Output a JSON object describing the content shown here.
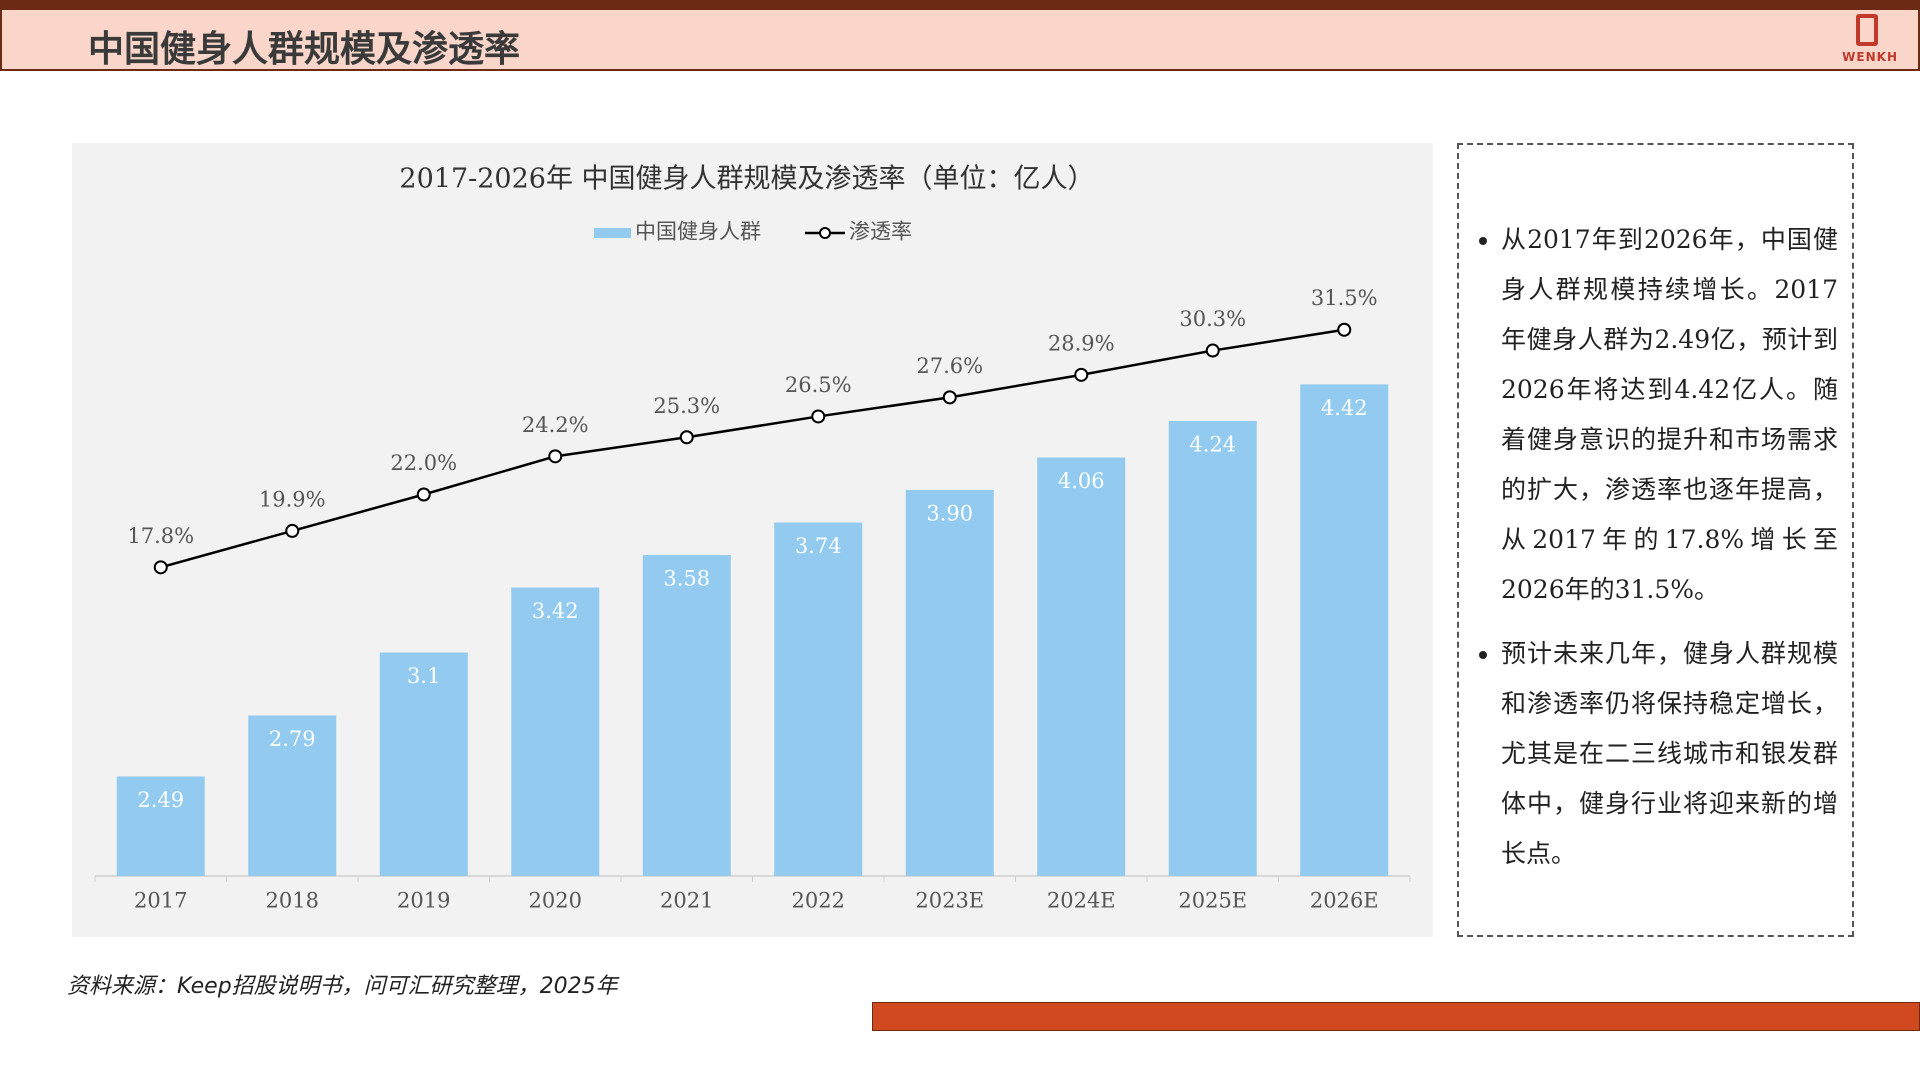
{
  "header": {
    "title": "中国健身人群规模及渗透率",
    "logo": "WENKH"
  },
  "chart_data": {
    "type": "bar",
    "title": "2017-2026年 中国健身人群规模及渗透率（单位：亿人）",
    "categories": [
      "2017",
      "2018",
      "2019",
      "2020",
      "2021",
      "2022",
      "2023E",
      "2024E",
      "2025E",
      "2026E"
    ],
    "series": [
      {
        "name": "中国健身人群",
        "color": "#92cbef",
        "values": [
          2.49,
          2.79,
          3.1,
          3.42,
          3.58,
          3.74,
          3.9,
          4.06,
          4.24,
          4.42
        ],
        "value_labels": [
          "2.49",
          "2.79",
          "3.1",
          "3.42",
          "3.58",
          "3.74",
          "3.90",
          "4.06",
          "4.24",
          "4.42"
        ]
      },
      {
        "name": "渗透率",
        "color": "#000000",
        "type": "line",
        "axis": "y2",
        "values": [
          17.8,
          19.9,
          22.0,
          24.2,
          25.3,
          26.5,
          27.6,
          28.9,
          30.3,
          31.5
        ],
        "value_labels": [
          "17.8%",
          "19.9%",
          "22.0%",
          "24.2%",
          "25.3%",
          "26.5%",
          "27.6%",
          "28.9%",
          "30.3%",
          "31.5%"
        ]
      }
    ],
    "ylim": [
      2,
      5.5
    ],
    "y2lim": [
      0,
      41
    ],
    "legend": "top"
  },
  "side_panel": {
    "bullets": [
      "从2017年到2026年，中国健身人群规模持续增长。2017年健身人群为2.49亿，预计到2026年将达到4.42亿人。随着健身意识的提升和市场需求的扩大，渗透率也逐年提高，从2017年的17.8%增长至2026年的31.5%。",
      "预计未来几年，健身人群规模和渗透率仍将保持稳定增长，尤其是在二三线城市和银发群体中，健身行业将迎来新的增长点。"
    ]
  },
  "source": "资料来源：Keep招股说明书，问可汇研究整理，2025年"
}
